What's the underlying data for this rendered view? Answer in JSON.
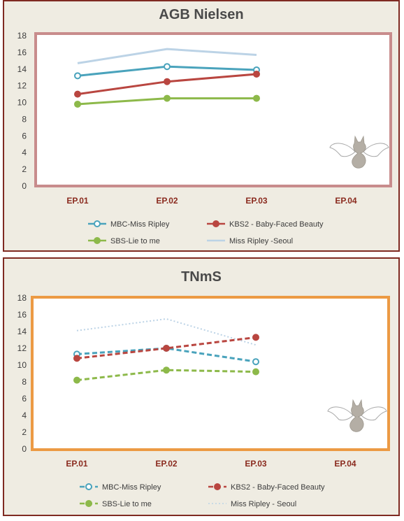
{
  "colors": {
    "mbc": "#4aa3bc",
    "kbs2": "#b94640",
    "sbs": "#8db94a",
    "seoul": "#bcd3e6",
    "panel_border": "#7f2a22",
    "plot1_border": "#c88c8c",
    "plot2_border": "#ec9a44",
    "xtick": "#8a2a1e"
  },
  "chart_data": [
    {
      "type": "line",
      "title": "AGB Nielsen",
      "categories": [
        "EP.01",
        "EP.02",
        "EP.03",
        "EP.04"
      ],
      "yticks": [
        0,
        2,
        4,
        6,
        8,
        10,
        12,
        14,
        16,
        18
      ],
      "ylim": [
        0,
        18
      ],
      "grid": false,
      "legend_position": "bottom",
      "series": [
        {
          "name": "MBC-Miss Ripley",
          "values": [
            13.2,
            14.3,
            13.9,
            null
          ],
          "color_key": "mbc",
          "style": "solid",
          "marker": "open-circle"
        },
        {
          "name": "KBS2 - Baby-Faced Beauty",
          "values": [
            11.0,
            12.5,
            13.4,
            null
          ],
          "color_key": "kbs2",
          "style": "solid",
          "marker": "filled-circle"
        },
        {
          "name": "SBS-Lie to me",
          "values": [
            9.8,
            10.5,
            10.5,
            null
          ],
          "color_key": "sbs",
          "style": "solid",
          "marker": "filled-circle"
        },
        {
          "name": "Miss Ripley -Seoul",
          "values": [
            14.7,
            16.4,
            15.7,
            null
          ],
          "color_key": "seoul",
          "style": "solid",
          "marker": "none"
        }
      ]
    },
    {
      "type": "line",
      "title": "TNmS",
      "categories": [
        "EP.01",
        "EP.02",
        "EP.03",
        "EP.04"
      ],
      "yticks": [
        0,
        2,
        4,
        6,
        8,
        10,
        12,
        14,
        16,
        18
      ],
      "ylim": [
        0,
        18
      ],
      "grid": false,
      "legend_position": "bottom",
      "series": [
        {
          "name": "MBC-Miss Ripley",
          "values": [
            11.3,
            12.0,
            10.4,
            null
          ],
          "color_key": "mbc",
          "style": "dashed",
          "marker": "open-circle"
        },
        {
          "name": "KBS2 - Baby-Faced Beauty",
          "values": [
            10.8,
            12.0,
            13.3,
            null
          ],
          "color_key": "kbs2",
          "style": "dashed",
          "marker": "filled-circle"
        },
        {
          "name": "SBS-Lie to me",
          "values": [
            8.2,
            9.4,
            9.2,
            null
          ],
          "color_key": "sbs",
          "style": "dashed",
          "marker": "filled-circle"
        },
        {
          "name": "Miss Ripley - Seoul",
          "values": [
            14.1,
            15.5,
            12.4,
            null
          ],
          "color_key": "seoul",
          "style": "dotted",
          "marker": "none"
        }
      ]
    }
  ]
}
